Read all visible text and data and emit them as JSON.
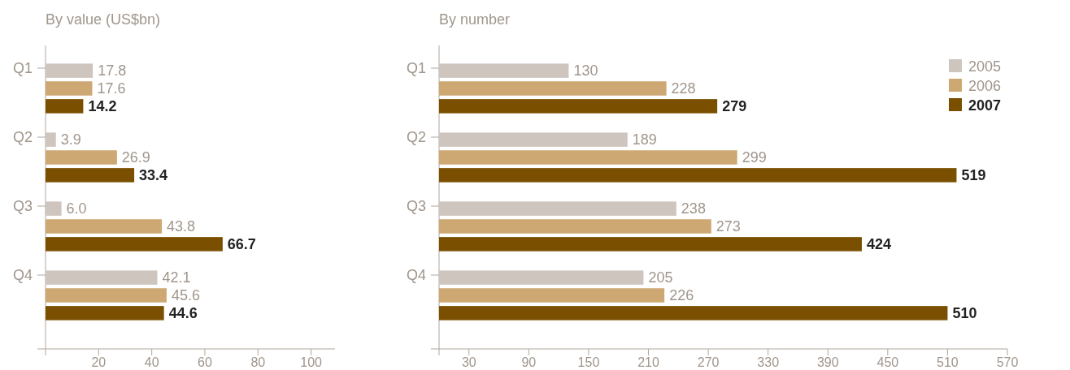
{
  "chart_data": [
    {
      "type": "bar",
      "orientation": "horizontal",
      "title": "By value (US$bn)",
      "categories": [
        "Q1",
        "Q2",
        "Q3",
        "Q4"
      ],
      "data_labels": true,
      "legend": false,
      "xlim": [
        0,
        109
      ],
      "xticks": [
        {
          "value": 0,
          "label": null
        },
        20,
        40,
        60,
        80,
        100
      ],
      "series": [
        {
          "color": "#cfc5bf",
          "values": [
            17.8,
            3.9,
            6.0,
            42.1
          ],
          "value_labels": [
            "17.8",
            "3.9",
            "6.0",
            "42.1"
          ]
        },
        {
          "color": "#cda873",
          "values": [
            17.6,
            26.9,
            43.8,
            45.6
          ],
          "value_labels": [
            "17.6",
            "26.9",
            "43.8",
            "45.6"
          ]
        },
        {
          "color": "#7a5000",
          "values": [
            14.2,
            33.4,
            66.7,
            44.6
          ],
          "value_labels": [
            "14.2",
            "33.4",
            "66.7",
            "44.6"
          ]
        }
      ]
    },
    {
      "type": "bar",
      "orientation": "horizontal",
      "title": "By number",
      "categories": [
        "Q1",
        "Q2",
        "Q3",
        "Q4"
      ],
      "data_labels": true,
      "legend": "top right",
      "xlim": [
        0,
        570
      ],
      "xticks": [
        {
          "value": 0,
          "label": null
        },
        30,
        90,
        150,
        210,
        270,
        330,
        390,
        450,
        510,
        570
      ],
      "series": [
        {
          "name": "2005",
          "color": "#cfc5bf",
          "values": [
            130,
            189,
            238,
            205
          ]
        },
        {
          "name": "2006",
          "color": "#cda873",
          "values": [
            228,
            299,
            273,
            226
          ]
        },
        {
          "name": "2007",
          "color": "#7a5000",
          "values": [
            279,
            519,
            424,
            510
          ]
        }
      ]
    }
  ]
}
